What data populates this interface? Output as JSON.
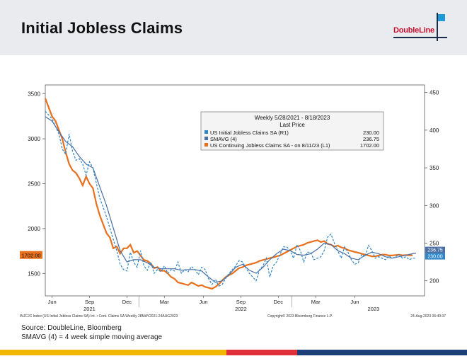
{
  "header": {
    "title": "Initial Jobless Claims",
    "logo_text": "DoubleLine"
  },
  "footer": {
    "source": "Source: DoubleLine, Bloomberg",
    "note": "SMAVG (4) = 4 week simple moving average",
    "bar_colors": [
      "#f2b705",
      "#f2b705",
      "#e0313a",
      "#1c3f7a"
    ]
  },
  "chart_data": {
    "type": "line",
    "legend": {
      "title": "Weekly 5/28/2021 - 8/18/2023",
      "subtitle": "Last Price",
      "entries": [
        {
          "label": "US Initial Jobless Claims SA  (R1)",
          "value": "230.00"
        },
        {
          "label": "SMAVG  (4)",
          "value": "236.75"
        },
        {
          "label": "US Continuing Jobless Claims SA -   on 8/11/23  (L1)",
          "value": "1702.00"
        }
      ],
      "placement": "top-right"
    },
    "colors": {
      "initial": "#2e86c8",
      "smavg": "#4a6fa5",
      "continuing": "#e8701c"
    },
    "left_axis": {
      "ticks": [
        1500,
        2000,
        2500,
        3000,
        3500
      ],
      "range": [
        1250,
        3600
      ]
    },
    "right_axis": {
      "ticks": [
        200,
        250,
        300,
        350,
        400,
        450
      ],
      "range": [
        180,
        460
      ]
    },
    "x_ticks_month": [
      "Jun",
      "Sep",
      "Dec",
      "Mar",
      "Jun",
      "Sep",
      "Dec",
      "Mar",
      "Jun"
    ],
    "x_ticks_year": [
      "2021",
      "2022",
      "2023"
    ],
    "x_range": [
      0,
      2.23
    ],
    "left_last_label": "1702.00",
    "right_last_labels": [
      "236.75",
      "230.00"
    ],
    "bottom_info": "INJCJC Index (US Initial Jobless Claims SA) Int. • Cont. Claims SA  Weekly 28MAY2021-24AUG2023",
    "copyright": "Copyright© 2023 Bloomberg Finance L.P.",
    "timestamp": "24-Aug-2023 06:40:37",
    "series": [
      {
        "name": "US Continuing Jobless Claims SA",
        "axis": "left",
        "x": [
          0.0,
          0.02,
          0.04,
          0.06,
          0.08,
          0.1,
          0.12,
          0.14,
          0.16,
          0.18,
          0.2,
          0.22,
          0.24,
          0.26,
          0.28,
          0.3,
          0.32,
          0.34,
          0.36,
          0.38,
          0.4,
          0.42,
          0.44,
          0.46,
          0.48,
          0.5,
          0.52,
          0.54,
          0.56,
          0.58,
          0.6,
          0.62,
          0.64,
          0.66,
          0.68,
          0.7,
          0.72,
          0.74,
          0.76,
          0.78,
          0.8,
          0.82,
          0.84,
          0.86,
          0.88,
          0.9,
          0.92,
          0.94,
          0.96,
          0.98,
          1.0,
          1.02,
          1.04,
          1.06,
          1.08,
          1.1,
          1.12,
          1.14,
          1.16,
          1.18,
          1.2,
          1.22,
          1.24,
          1.26,
          1.28,
          1.3,
          1.32,
          1.34,
          1.36,
          1.38,
          1.4,
          1.42,
          1.44,
          1.46,
          1.48,
          1.5,
          1.52,
          1.54,
          1.56,
          1.58,
          1.6,
          1.62,
          1.64,
          1.66,
          1.68,
          1.7,
          1.72,
          1.74,
          1.76,
          1.78,
          1.8,
          1.82,
          1.84,
          1.86,
          1.88,
          1.9,
          1.92,
          1.94,
          1.96,
          1.98,
          2.0,
          2.02,
          2.04,
          2.06,
          2.08,
          2.1,
          2.12,
          2.14,
          2.16
        ],
        "values": [
          3450,
          3350,
          3250,
          3200,
          3100,
          3000,
          2850,
          2720,
          2650,
          2620,
          2560,
          2480,
          2580,
          2500,
          2450,
          2280,
          2150,
          2050,
          1950,
          1900,
          1780,
          1800,
          1720,
          1780,
          1780,
          1820,
          1730,
          1750,
          1700,
          1650,
          1640,
          1610,
          1560,
          1570,
          1530,
          1530,
          1500,
          1460,
          1440,
          1400,
          1390,
          1380,
          1370,
          1400,
          1380,
          1360,
          1370,
          1350,
          1340,
          1330,
          1350,
          1380,
          1420,
          1460,
          1480,
          1500,
          1530,
          1560,
          1570,
          1590,
          1600,
          1610,
          1620,
          1640,
          1650,
          1660,
          1670,
          1680,
          1690,
          1700,
          1720,
          1740,
          1760,
          1780,
          1800,
          1810,
          1820,
          1840,
          1850,
          1860,
          1870,
          1850,
          1860,
          1830,
          1820,
          1800,
          1810,
          1790,
          1780,
          1760,
          1750,
          1740,
          1730,
          1720,
          1710,
          1700,
          1690,
          1690,
          1700,
          1710,
          1710,
          1700,
          1700,
          1705,
          1708,
          1702,
          1705,
          1702,
          1702
        ]
      },
      {
        "name": "US Initial Jobless Claims SA",
        "axis": "right",
        "x": [
          0.0,
          0.02,
          0.04,
          0.06,
          0.08,
          0.1,
          0.12,
          0.14,
          0.16,
          0.18,
          0.2,
          0.22,
          0.24,
          0.26,
          0.28,
          0.3,
          0.32,
          0.34,
          0.36,
          0.38,
          0.4,
          0.42,
          0.44,
          0.46,
          0.48,
          0.5,
          0.52,
          0.54,
          0.56,
          0.58,
          0.6,
          0.62,
          0.64,
          0.66,
          0.68,
          0.7,
          0.72,
          0.74,
          0.76,
          0.78,
          0.8,
          0.82,
          0.84,
          0.86,
          0.88,
          0.9,
          0.92,
          0.94,
          0.96,
          0.98,
          1.0,
          1.02,
          1.04,
          1.06,
          1.08,
          1.1,
          1.12,
          1.14,
          1.16,
          1.18,
          1.2,
          1.22,
          1.24,
          1.26,
          1.28,
          1.3,
          1.32,
          1.34,
          1.36,
          1.38,
          1.4,
          1.42,
          1.44,
          1.46,
          1.48,
          1.5,
          1.52,
          1.54,
          1.56,
          1.58,
          1.6,
          1.62,
          1.64,
          1.66,
          1.68,
          1.7,
          1.72,
          1.74,
          1.76,
          1.78,
          1.8,
          1.82,
          1.84,
          1.86,
          1.88,
          1.9,
          1.92,
          1.94,
          1.96,
          1.98,
          2.0,
          2.02,
          2.04,
          2.06,
          2.08,
          2.1,
          2.12,
          2.14,
          2.16,
          2.18
        ],
        "values": [
          425,
          420,
          415,
          405,
          395,
          375,
          368,
          395,
          372,
          360,
          362,
          355,
          340,
          358,
          350,
          330,
          310,
          298,
          285,
          270,
          255,
          240,
          222,
          215,
          213,
          238,
          225,
          218,
          240,
          220,
          214,
          225,
          210,
          215,
          212,
          220,
          210,
          215,
          213,
          225,
          210,
          215,
          212,
          219,
          215,
          208,
          218,
          215,
          203,
          195,
          202,
          193,
          195,
          203,
          210,
          215,
          220,
          227,
          225,
          217,
          210,
          205,
          200,
          215,
          220,
          230,
          205,
          220,
          225,
          235,
          245,
          245,
          240,
          230,
          248,
          240,
          225,
          238,
          238,
          228,
          230,
          232,
          240,
          258,
          262,
          250,
          240,
          230,
          245,
          238,
          228,
          222,
          224,
          235,
          232,
          247,
          240,
          230,
          232,
          230,
          228,
          233,
          230,
          232,
          235,
          230,
          232,
          228,
          230,
          230
        ]
      },
      {
        "name": "SMAVG (4)",
        "axis": "right",
        "x": [
          0.0,
          0.04,
          0.08,
          0.12,
          0.16,
          0.2,
          0.24,
          0.28,
          0.32,
          0.36,
          0.4,
          0.44,
          0.48,
          0.52,
          0.56,
          0.6,
          0.64,
          0.68,
          0.72,
          0.76,
          0.8,
          0.84,
          0.88,
          0.92,
          0.96,
          1.0,
          1.04,
          1.08,
          1.12,
          1.16,
          1.2,
          1.24,
          1.28,
          1.32,
          1.36,
          1.4,
          1.44,
          1.48,
          1.52,
          1.56,
          1.6,
          1.64,
          1.68,
          1.72,
          1.76,
          1.8,
          1.84,
          1.88,
          1.92,
          1.96,
          2.0,
          2.04,
          2.08,
          2.12,
          2.16,
          2.18
        ],
        "values": [
          418,
          412,
          398,
          385,
          378,
          365,
          355,
          350,
          325,
          300,
          270,
          240,
          225,
          228,
          228,
          224,
          218,
          216,
          216,
          216,
          214,
          215,
          215,
          213,
          205,
          198,
          200,
          208,
          218,
          222,
          214,
          210,
          218,
          228,
          236,
          242,
          240,
          235,
          234,
          236,
          242,
          250,
          248,
          240,
          236,
          230,
          228,
          234,
          238,
          236,
          232,
          230,
          232,
          234,
          236,
          236.75
        ]
      }
    ]
  }
}
